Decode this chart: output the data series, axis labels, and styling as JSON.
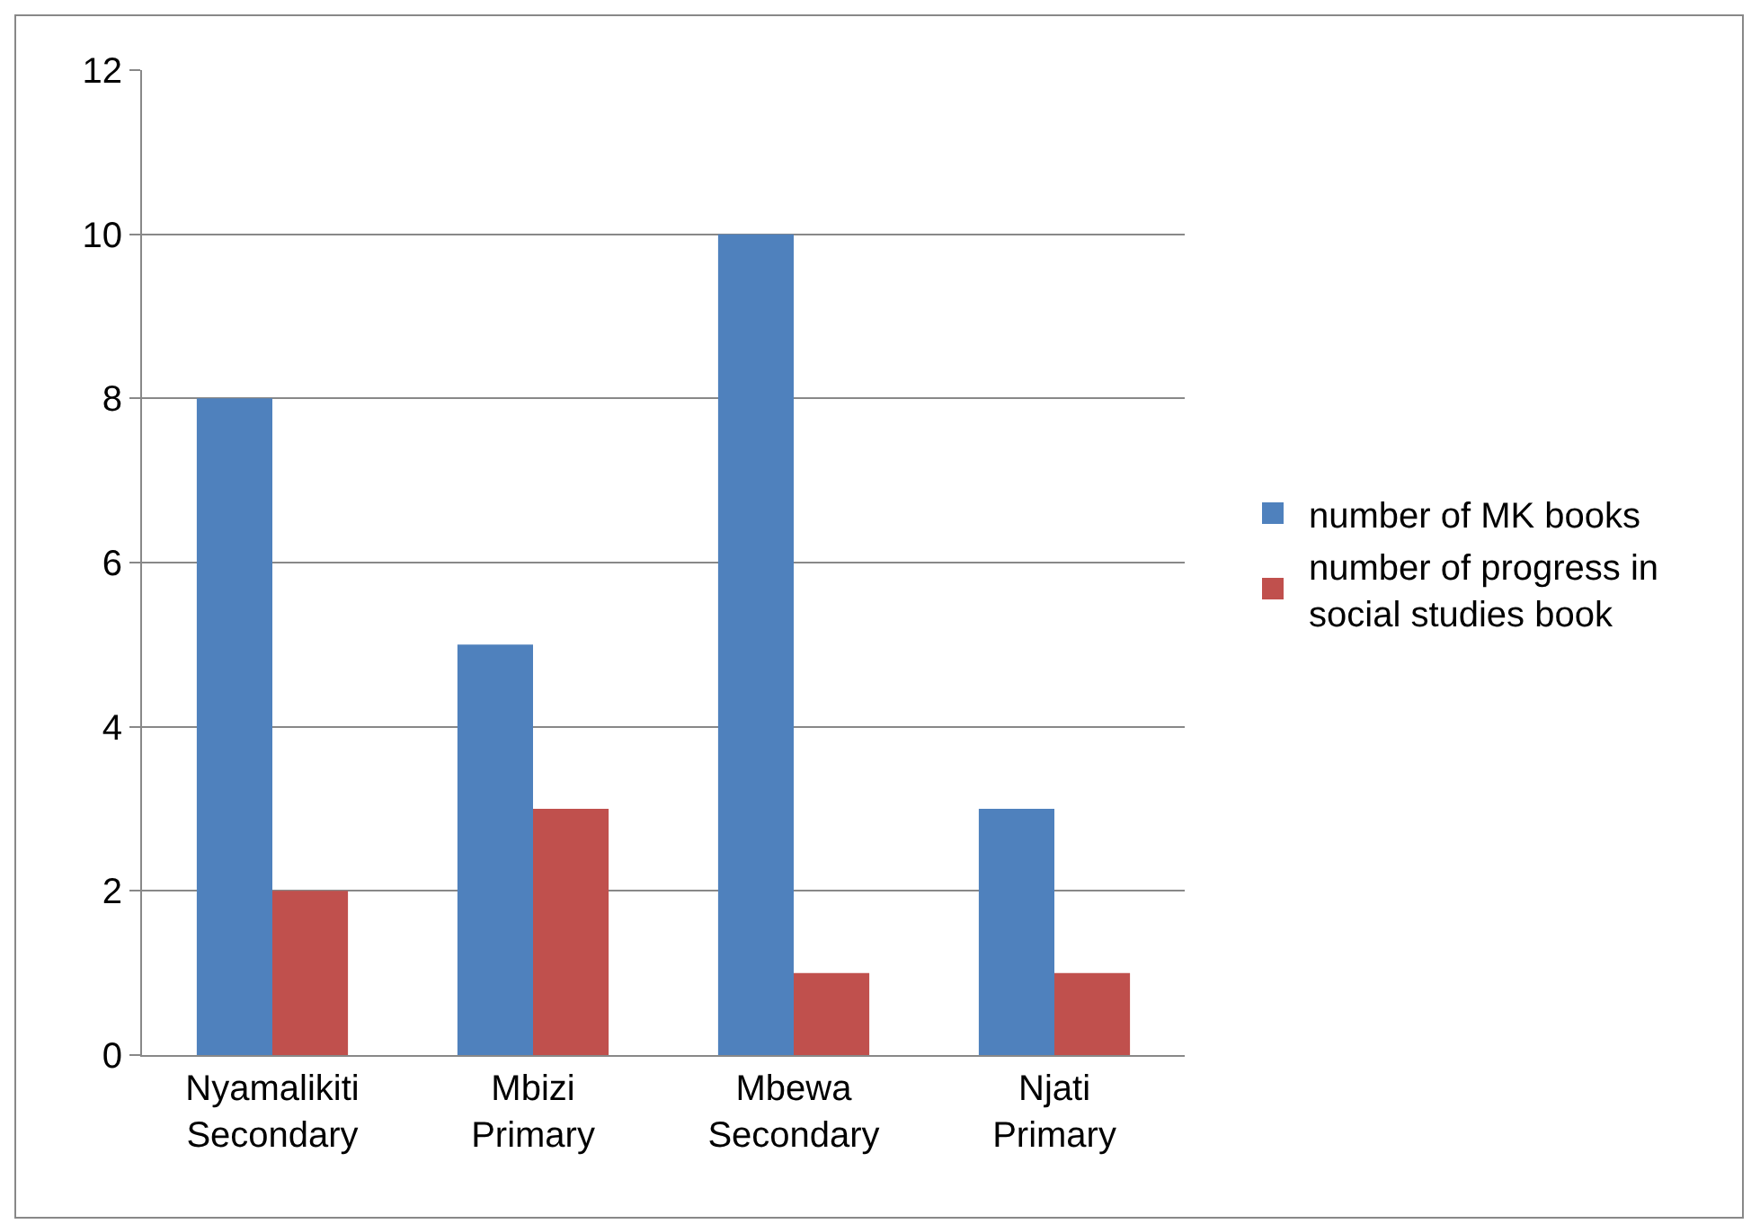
{
  "chart_data": {
    "type": "bar",
    "categories": [
      "Nyamalikiti Secondary",
      "Mbizi Primary",
      "Mbewa Secondary",
      "Njati Primary"
    ],
    "series": [
      {
        "name": "number of MK books",
        "color": "#4f81bd",
        "values": [
          8,
          5,
          10,
          3
        ]
      },
      {
        "name": "number of progress in social studies book",
        "color": "#c0504d",
        "values": [
          2,
          3,
          1,
          1
        ]
      }
    ],
    "ylim": [
      0,
      12
    ],
    "yticks": [
      0,
      2,
      4,
      6,
      8,
      10,
      12
    ],
    "grid": "y",
    "legend": "right"
  }
}
